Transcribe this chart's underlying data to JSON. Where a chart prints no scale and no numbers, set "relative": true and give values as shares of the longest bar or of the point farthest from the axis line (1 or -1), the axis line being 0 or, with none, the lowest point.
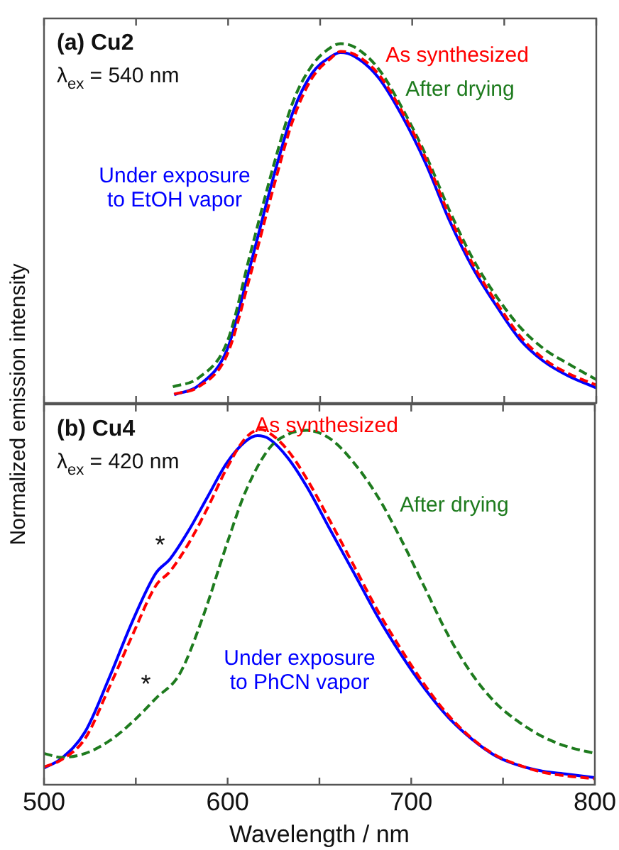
{
  "chart_data": [
    {
      "type": "line",
      "title": "(a) Cu2",
      "ylabel": "Normalized emission intensity",
      "relative": true,
      "xlim": [
        500,
        800
      ],
      "xticks": [
        500,
        {
          "value": 550,
          "label": null
        },
        600,
        {
          "value": 650,
          "label": null
        },
        700,
        {
          "value": 750,
          "label": null
        },
        800
      ],
      "tick_labels": false,
      "grid": false,
      "legend": false,
      "marker": "none",
      "annotations": [
        "λ$_{ex}$ = 540 nm"
      ],
      "series": [
        {
          "name": "As synthesized",
          "color": "#ff0000",
          "line_style": "dashed",
          "x": [
            570.7,
            584,
            599.5,
            612.3,
            625.2,
            635.4,
            645.7,
            656,
            661.1,
            668.8,
            681.7,
            694.6,
            707.4,
            720.3,
            733.1,
            746,
            758.8,
            771.7,
            784.5,
            800
          ],
          "values": [
            0.025,
            0.045,
            0.135,
            0.36,
            0.61,
            0.79,
            0.905,
            0.96,
            0.978,
            0.97,
            0.915,
            0.81,
            0.68,
            0.52,
            0.385,
            0.278,
            0.185,
            0.122,
            0.083,
            0.05
          ]
        },
        {
          "name": "After drying",
          "color": "#1e7b1e",
          "line_style": "dashed",
          "x": [
            570,
            584,
            599.5,
            612.3,
            625.2,
            635.4,
            645.7,
            656,
            661.1,
            668.8,
            681.7,
            694.6,
            707.4,
            720.3,
            733.1,
            746,
            758.8,
            771.7,
            784.5,
            800
          ],
          "values": [
            0.045,
            0.07,
            0.17,
            0.42,
            0.67,
            0.84,
            0.94,
            0.99,
            1,
            0.99,
            0.93,
            0.82,
            0.69,
            0.535,
            0.4,
            0.295,
            0.21,
            0.15,
            0.11,
            0.065
          ]
        },
        {
          "name": "Under exposure to EtOH vapor",
          "color": "#0000ff",
          "line_style": "solid",
          "x": [
            570.7,
            584,
            599.5,
            612.3,
            625.2,
            635.4,
            645.7,
            656,
            661.1,
            668.8,
            681.7,
            694.6,
            707.4,
            720.3,
            733.1,
            746,
            758.8,
            771.7,
            784.5,
            800
          ],
          "values": [
            0.023,
            0.049,
            0.149,
            0.387,
            0.639,
            0.812,
            0.918,
            0.964,
            0.975,
            0.964,
            0.905,
            0.798,
            0.666,
            0.507,
            0.374,
            0.268,
            0.175,
            0.115,
            0.076,
            0.042
          ]
        }
      ]
    },
    {
      "type": "line",
      "title": "(b) Cu4",
      "xlabel": "Wavelength / nm",
      "relative": true,
      "xlim": [
        500,
        800
      ],
      "xticks": [
        500,
        {
          "value": 550,
          "label": null
        },
        600,
        {
          "value": 650,
          "label": null
        },
        700,
        {
          "value": 750,
          "label": null
        },
        800
      ],
      "tick_labels": "x",
      "grid": false,
      "legend": false,
      "marker": "none",
      "annotations": [
        "λ$_{ex}$ = 420 nm",
        {
          "text": "*",
          "x": 568.6,
          "y": 0.635
        },
        {
          "text": "*",
          "x": 560.9,
          "y": 0.243
        }
      ],
      "series": [
        {
          "name": "As synthesized",
          "color": "#ff0000",
          "line_style": "dashed",
          "x": [
            500,
            509.5,
            522.4,
            535.2,
            548.1,
            560.9,
            568.6,
            578.9,
            589.2,
            599.5,
            609.7,
            618,
            624,
            632.9,
            643.2,
            656,
            668.9,
            681.7,
            694.6,
            707.4,
            720.3,
            733.1,
            746,
            758.8,
            771.7,
            784.5,
            800
          ],
          "values": [
            0.05,
            0.07,
            0.13,
            0.27,
            0.42,
            0.56,
            0.6,
            0.68,
            0.78,
            0.89,
            0.975,
            1,
            0.985,
            0.94,
            0.86,
            0.74,
            0.615,
            0.49,
            0.38,
            0.28,
            0.195,
            0.13,
            0.083,
            0.055,
            0.035,
            0.025,
            0.017
          ]
        },
        {
          "name": "After drying",
          "color": "#1e7b1e",
          "line_style": "dashed",
          "x": [
            500,
            509.5,
            522.4,
            535.2,
            548.1,
            560.9,
            573.8,
            586.6,
            599.5,
            609.7,
            622.6,
            632.9,
            643.2,
            656,
            668.9,
            681.7,
            694.6,
            707.4,
            720.3,
            733.1,
            746,
            758.8,
            771.7,
            784.5,
            800
          ],
          "values": [
            0.088,
            0.077,
            0.088,
            0.122,
            0.176,
            0.243,
            0.311,
            0.473,
            0.676,
            0.824,
            0.946,
            0.986,
            0.997,
            0.973,
            0.905,
            0.811,
            0.689,
            0.554,
            0.419,
            0.311,
            0.23,
            0.176,
            0.135,
            0.108,
            0.088
          ]
        },
        {
          "name": "Under exposure to PhCN vapor",
          "color": "#0000ff",
          "line_style": "solid",
          "x": [
            500,
            509.5,
            522.4,
            535.2,
            548.1,
            560.9,
            568.6,
            578.9,
            589.2,
            599.5,
            609.7,
            616.2,
            622.6,
            632.9,
            643.2,
            656,
            668.9,
            681.7,
            694.6,
            707.4,
            720.3,
            733.1,
            746,
            758.8,
            771.7,
            784.5,
            800
          ],
          "values": [
            0.047,
            0.074,
            0.149,
            0.297,
            0.459,
            0.595,
            0.635,
            0.716,
            0.811,
            0.905,
            0.966,
            0.982,
            0.973,
            0.919,
            0.838,
            0.716,
            0.595,
            0.473,
            0.365,
            0.27,
            0.189,
            0.128,
            0.081,
            0.054,
            0.038,
            0.03,
            0.02
          ]
        }
      ]
    }
  ]
}
